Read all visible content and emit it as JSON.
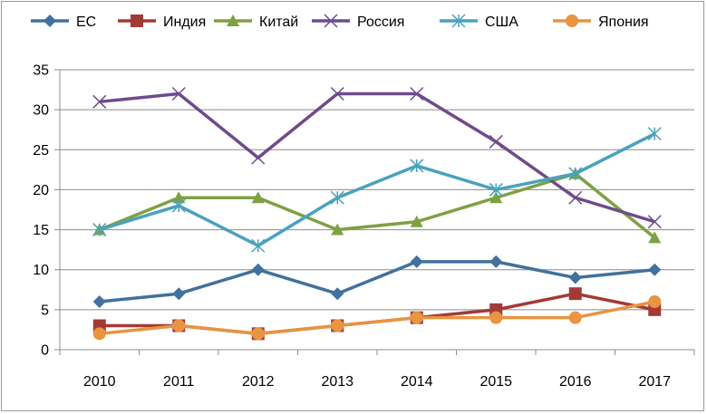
{
  "chart_data": {
    "type": "line",
    "title": "",
    "xlabel": "",
    "ylabel": "",
    "categories": [
      "2010",
      "2011",
      "2012",
      "2013",
      "2014",
      "2015",
      "2016",
      "2017"
    ],
    "ylim": [
      0,
      35
    ],
    "yticks": [
      0,
      5,
      10,
      15,
      20,
      25,
      30,
      35
    ],
    "grid": true,
    "legend_position": "top",
    "series": [
      {
        "name": "ЕС",
        "color": "#41719c",
        "marker": "diamond",
        "values": [
          6,
          7,
          10,
          7,
          11,
          11,
          9,
          10
        ]
      },
      {
        "name": "Индия",
        "color": "#a33a36",
        "marker": "square",
        "values": [
          3,
          3,
          2,
          3,
          4,
          5,
          7,
          5
        ]
      },
      {
        "name": "Китай",
        "color": "#7ea143",
        "marker": "triangle",
        "values": [
          15,
          19,
          19,
          15,
          16,
          19,
          22,
          14
        ]
      },
      {
        "name": "Россия",
        "color": "#6f4b8b",
        "marker": "x",
        "values": [
          31,
          32,
          24,
          32,
          32,
          26,
          19,
          16
        ]
      },
      {
        "name": "США",
        "color": "#4aa2bd",
        "marker": "star",
        "values": [
          15,
          18,
          13,
          19,
          23,
          20,
          22,
          27
        ]
      },
      {
        "name": "Япония",
        "color": "#e89440",
        "marker": "circle",
        "values": [
          2,
          3,
          2,
          3,
          4,
          4,
          4,
          6
        ]
      }
    ]
  }
}
